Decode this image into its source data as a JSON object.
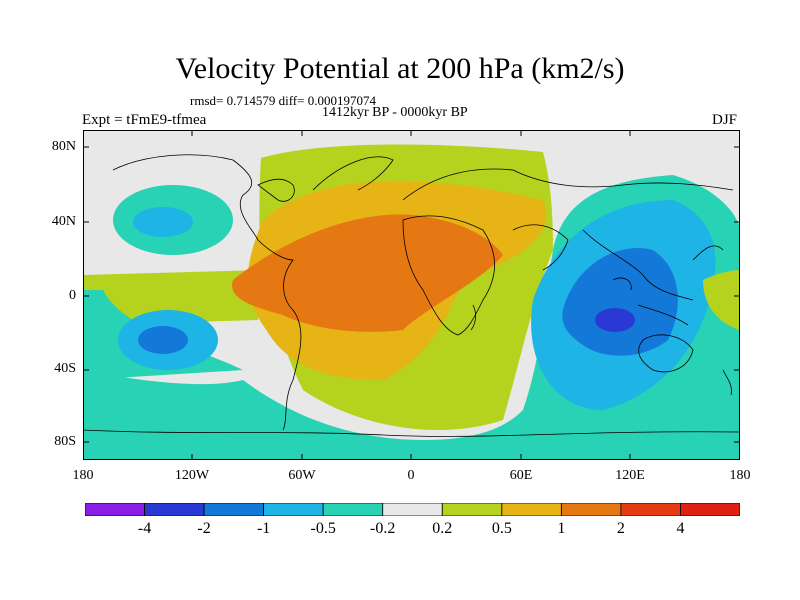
{
  "title": "Velocity Potential at 200 hPa (km2/s)",
  "stats": "rmsd= 0.714579 diff= 0.000197074",
  "period": "1412kyr BP - 0000kyr BP",
  "experiment": "Expt = tFmE9-tfmea",
  "season": "DJF",
  "axes": {
    "y_ticks": [
      "80N",
      "40N",
      "0",
      "40S",
      "80S"
    ],
    "x_ticks": [
      "180",
      "120W",
      "60W",
      "0",
      "60E",
      "120E",
      "180"
    ]
  },
  "colorbar": {
    "labels": [
      "-4",
      "-2",
      "-1",
      "-0.5",
      "-0.2",
      "0.2",
      "0.5",
      "1",
      "2",
      "4"
    ],
    "colors": [
      "#8a1ee6",
      "#2a38d4",
      "#1478d8",
      "#1eb4e6",
      "#28d2b4",
      "#e8e8e8",
      "#b4d21e",
      "#e6b414",
      "#e67814",
      "#e63c14"
    ]
  }
}
